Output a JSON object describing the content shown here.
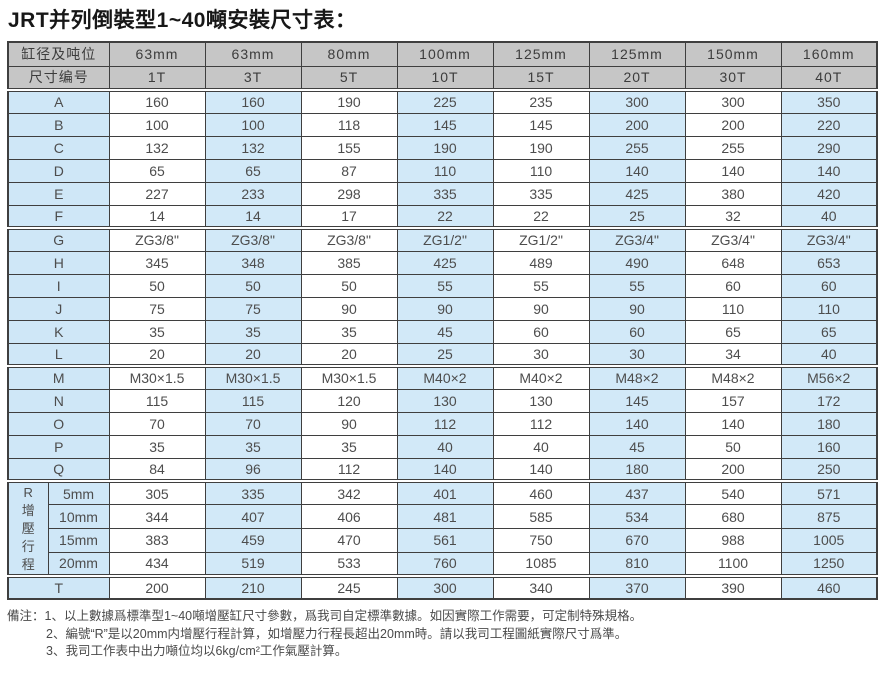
{
  "page": {
    "title": "JRT并列倒裝型1~40噸安裝尺寸表："
  },
  "colors": {
    "header_bg": "#c6c6c6",
    "label_bg": "#cfe7f7",
    "alt_column_bg": "#d2e9f8",
    "border": "#3f3f3f",
    "text": "#4d4d4d"
  },
  "table": {
    "corner_header": "缸径及吨位",
    "corner_subheader": "尺寸编号",
    "bore_sizes": [
      "63mm",
      "63mm",
      "80mm",
      "100mm",
      "125mm",
      "125mm",
      "150mm",
      "160mm"
    ],
    "tonnages": [
      "1T",
      "3T",
      "5T",
      "10T",
      "15T",
      "20T",
      "30T",
      "40T"
    ],
    "groups": [
      {
        "name": "A-F",
        "rows": [
          {
            "label": "A",
            "values": [
              "160",
              "160",
              "190",
              "225",
              "235",
              "300",
              "300",
              "350"
            ]
          },
          {
            "label": "B",
            "values": [
              "100",
              "100",
              "118",
              "145",
              "145",
              "200",
              "200",
              "220"
            ]
          },
          {
            "label": "C",
            "values": [
              "132",
              "132",
              "155",
              "190",
              "190",
              "255",
              "255",
              "290"
            ]
          },
          {
            "label": "D",
            "values": [
              "65",
              "65",
              "87",
              "110",
              "110",
              "140",
              "140",
              "140"
            ]
          },
          {
            "label": "E",
            "values": [
              "227",
              "233",
              "298",
              "335",
              "335",
              "425",
              "380",
              "420"
            ]
          },
          {
            "label": "F",
            "values": [
              "14",
              "14",
              "17",
              "22",
              "22",
              "25",
              "32",
              "40"
            ]
          }
        ]
      },
      {
        "name": "G-L",
        "rows": [
          {
            "label": "G",
            "values": [
              "ZG3/8\"",
              "ZG3/8\"",
              "ZG3/8\"",
              "ZG1/2\"",
              "ZG1/2\"",
              "ZG3/4\"",
              "ZG3/4\"",
              "ZG3/4\""
            ]
          },
          {
            "label": "H",
            "values": [
              "345",
              "348",
              "385",
              "425",
              "489",
              "490",
              "648",
              "653"
            ]
          },
          {
            "label": "I",
            "values": [
              "50",
              "50",
              "50",
              "55",
              "55",
              "55",
              "60",
              "60"
            ]
          },
          {
            "label": "J",
            "values": [
              "75",
              "75",
              "90",
              "90",
              "90",
              "90",
              "110",
              "110"
            ]
          },
          {
            "label": "K",
            "values": [
              "35",
              "35",
              "35",
              "45",
              "60",
              "60",
              "65",
              "65"
            ]
          },
          {
            "label": "L",
            "values": [
              "20",
              "20",
              "20",
              "25",
              "30",
              "30",
              "34",
              "40"
            ]
          }
        ]
      },
      {
        "name": "M-Q",
        "rows": [
          {
            "label": "M",
            "values": [
              "M30×1.5",
              "M30×1.5",
              "M30×1.5",
              "M40×2",
              "M40×2",
              "M48×2",
              "M48×2",
              "M56×2"
            ]
          },
          {
            "label": "N",
            "values": [
              "115",
              "115",
              "120",
              "130",
              "130",
              "145",
              "157",
              "172"
            ]
          },
          {
            "label": "O",
            "values": [
              "70",
              "70",
              "90",
              "112",
              "112",
              "140",
              "140",
              "180"
            ]
          },
          {
            "label": "P",
            "values": [
              "35",
              "35",
              "35",
              "40",
              "40",
              "45",
              "50",
              "160"
            ]
          },
          {
            "label": "Q",
            "values": [
              "84",
              "96",
              "112",
              "140",
              "140",
              "180",
              "200",
              "250"
            ]
          }
        ]
      },
      {
        "name": "R",
        "r_label": "R",
        "r_vertical": "增壓行程",
        "rows": [
          {
            "label": "5mm",
            "values": [
              "305",
              "335",
              "342",
              "401",
              "460",
              "437",
              "540",
              "571"
            ]
          },
          {
            "label": "10mm",
            "values": [
              "344",
              "407",
              "406",
              "481",
              "585",
              "534",
              "680",
              "875"
            ]
          },
          {
            "label": "15mm",
            "values": [
              "383",
              "459",
              "470",
              "561",
              "750",
              "670",
              "988",
              "1005"
            ]
          },
          {
            "label": "20mm",
            "values": [
              "434",
              "519",
              "533",
              "760",
              "1085",
              "810",
              "1100",
              "1250"
            ]
          }
        ]
      },
      {
        "name": "T",
        "rows": [
          {
            "label": "T",
            "values": [
              "200",
              "210",
              "245",
              "300",
              "340",
              "370",
              "390",
              "460"
            ]
          }
        ]
      }
    ]
  },
  "notes": {
    "prefix": "備注：",
    "items": [
      "1、以上數據爲標準型1~40噸增壓缸尺寸參數，爲我司自定標準數據。如因實際工作需要，可定制特殊規格。",
      "2、編號“R”是以20mm内增壓行程計算，如增壓力行程長超出20mm時。請以我司工程圖紙實際尺寸爲準。",
      "3、我司工作表中出力噸位均以6kg/cm²工作氣壓計算。"
    ]
  }
}
